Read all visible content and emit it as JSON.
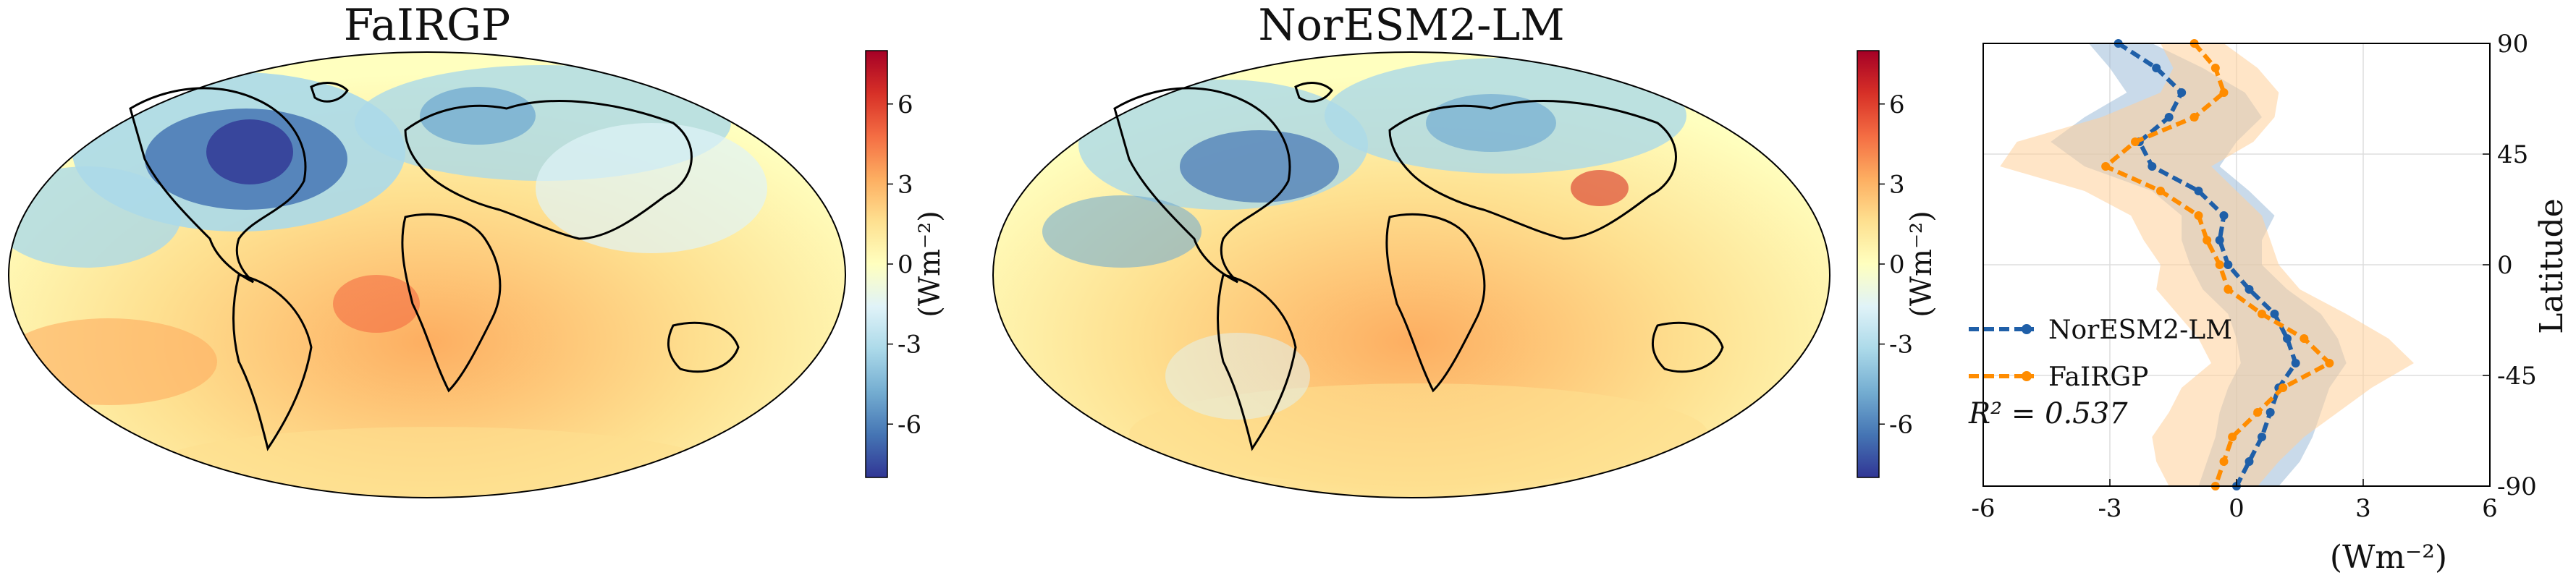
{
  "maps": [
    {
      "title": "FaIRGP",
      "colorbar_label": "(Wm⁻²)",
      "colorbar_ticks": [
        -6,
        -3,
        0,
        3,
        6
      ]
    },
    {
      "title": "NorESM2-LM",
      "colorbar_label": "(Wm⁻²)",
      "colorbar_ticks": [
        -6,
        -3,
        0,
        3,
        6
      ]
    }
  ],
  "colors": {
    "noresm": "#1f5fa8",
    "fairgp": "#ff8c00",
    "noresm_band": "#9dbbd9",
    "fairgp_band": "#ffcf99",
    "colormap": [
      "#313695",
      "#4575b4",
      "#74add1",
      "#abd9e9",
      "#e0f3f8",
      "#ffffbf",
      "#fee090",
      "#fdae61",
      "#f46d43",
      "#d73027",
      "#a50026"
    ]
  },
  "chart_data": {
    "type": "line",
    "orientation": "horizontal-profile",
    "xlabel": "(Wm⁻²)",
    "ylabel": "Latitude",
    "xlim": [
      -6,
      6
    ],
    "ylim": [
      -90,
      90
    ],
    "xticks": [
      -6,
      -3,
      0,
      3,
      6
    ],
    "yticks": [
      90,
      45,
      0,
      -45,
      -90
    ],
    "grid": true,
    "legend_position": "lower-left",
    "annotation": "R² = 0.537",
    "latitude": [
      90,
      80,
      70,
      60,
      50,
      40,
      30,
      20,
      10,
      0,
      -10,
      -20,
      -30,
      -40,
      -50,
      -60,
      -70,
      -80,
      -90
    ],
    "series": [
      {
        "name": "NorESM2-LM",
        "values": [
          -2.8,
          -1.9,
          -1.3,
          -1.6,
          -2.3,
          -2.0,
          -0.9,
          -0.3,
          -0.4,
          -0.2,
          0.3,
          0.9,
          1.2,
          1.4,
          1.0,
          0.8,
          0.6,
          0.3,
          0.0
        ],
        "lower": [
          -3.5,
          -3.0,
          -2.6,
          -3.6,
          -4.4,
          -3.6,
          -2.0,
          -1.3,
          -1.3,
          -1.1,
          -0.8,
          -0.2,
          0.0,
          0.1,
          -0.2,
          -0.4,
          -0.5,
          -0.7,
          -0.9
        ],
        "upper": [
          -2.0,
          -0.8,
          0.2,
          0.6,
          0.0,
          -0.4,
          0.3,
          0.9,
          0.6,
          0.6,
          1.2,
          2.0,
          2.4,
          2.6,
          2.2,
          2.0,
          1.8,
          1.5,
          1.0
        ]
      },
      {
        "name": "FaIRGP",
        "values": [
          -1.0,
          -0.5,
          -0.3,
          -1.0,
          -2.4,
          -3.1,
          -1.8,
          -0.9,
          -0.7,
          -0.4,
          -0.2,
          0.6,
          1.6,
          2.2,
          1.1,
          0.5,
          -0.1,
          -0.3,
          -0.5
        ],
        "lower": [
          -1.8,
          -1.5,
          -1.8,
          -3.2,
          -5.2,
          -5.6,
          -3.6,
          -2.5,
          -2.2,
          -1.8,
          -1.9,
          -1.4,
          -0.9,
          -0.6,
          -1.3,
          -1.6,
          -2.0,
          -1.9,
          -1.6
        ],
        "upper": [
          -0.3,
          0.5,
          1.0,
          0.9,
          0.4,
          -0.6,
          0.0,
          0.6,
          0.8,
          1.0,
          1.5,
          2.6,
          3.6,
          4.2,
          3.2,
          2.4,
          1.6,
          1.0,
          0.5
        ]
      }
    ]
  }
}
